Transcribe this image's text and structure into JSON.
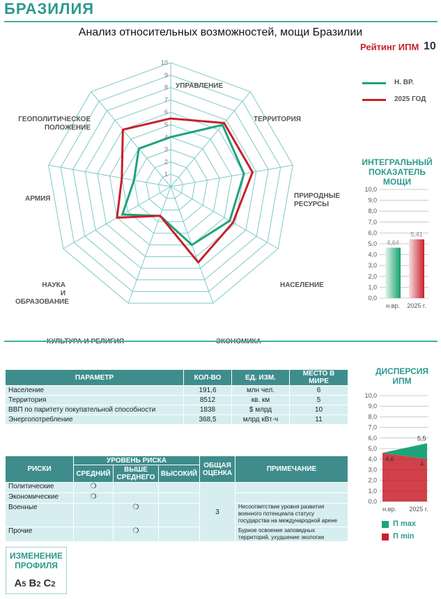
{
  "header": {
    "country": "БРАЗИЛИЯ",
    "title": "Анализ относительных возможностей, мощи Бразилии",
    "rating_label": "Рейтинг ИПМ",
    "rating_value": "10"
  },
  "colors": {
    "teal": "#1fa37a",
    "red": "#c8202a",
    "grid": "#7cc9c6",
    "header_bg": "#3e8d8c",
    "cell_bg": "#d6eef0"
  },
  "chart_data": [
    {
      "type": "radar",
      "axes": [
        "УПРАВЛЕНИЕ",
        "ТЕРРИТОРИЯ",
        "ПРИРОДНЫЕ РЕСУРСЫ",
        "НАСЕЛЕНИЕ",
        "ЭКОНОМИКА",
        "КУЛЬТУРА И РЕЛИГИЯ",
        "НАУКА И ОБРАЗОВАНИЕ",
        "АРМИЯ",
        "ГЕОПОЛИТИЧЕСКОЕ ПОЛОЖЕНИЕ"
      ],
      "axis_labels": [
        [
          "УПРАВЛЕНИЕ"
        ],
        [
          "ТЕРРИТОРИЯ"
        ],
        [
          "ПРИРОДНЫЕ",
          "РЕСУРСЫ"
        ],
        [
          "НАСЕЛЕНИЕ"
        ],
        [
          "ЭКОНОМИКА"
        ],
        [
          "КУЛЬТУРА И РЕЛИГИЯ"
        ],
        [
          "НАУКА",
          "И ОБРАЗОВАНИЕ"
        ],
        [
          "АРМИЯ"
        ],
        [
          "ГЕОПОЛИТИЧЕСКОЕ",
          "ПОЛОЖЕНИЕ"
        ]
      ],
      "scale_ticks": [
        "1",
        "2",
        "3",
        "4",
        "5",
        "6",
        "7",
        "8",
        "9",
        "10"
      ],
      "rlim": [
        0,
        10
      ],
      "series": [
        {
          "name": "Н. ВР.",
          "values": [
            4.0,
            6.5,
            6.0,
            5.5,
            5.0,
            2.5,
            4.5,
            3.0,
            4.0
          ]
        },
        {
          "name": "2025 ГОД",
          "values": [
            5.5,
            6.7,
            6.7,
            5.8,
            6.5,
            2.5,
            5.0,
            4.0,
            6.0
          ]
        }
      ],
      "legend_position": "right"
    },
    {
      "type": "bar",
      "title": "ИНТЕГРАЛЬНЫЙ ПОКАЗАТЕЛЬ МОЩИ",
      "categories": [
        "н.вр.",
        "2025 г."
      ],
      "values": [
        4.64,
        5.41
      ],
      "value_labels": [
        "4,64",
        "5,41"
      ],
      "ylim": [
        0,
        10
      ],
      "yticks": [
        "0,0",
        "1,0",
        "2,0",
        "3,0",
        "4,0",
        "5,0",
        "6,0",
        "7,0",
        "8,0",
        "9,0",
        "10,0"
      ]
    },
    {
      "type": "area",
      "title": "ДИСПЕРСИЯ ИПМ",
      "categories": [
        "н.вр.",
        "2025 г."
      ],
      "series": [
        {
          "name": "П max",
          "values": [
            4.6,
            5.5
          ]
        },
        {
          "name": "П min",
          "values": [
            4.6,
            4.0
          ]
        }
      ],
      "value_labels": [
        "4,6",
        "5,5",
        "4"
      ],
      "ylim": [
        0,
        10
      ],
      "yticks": [
        "0,0",
        "1,0",
        "2,0",
        "3,0",
        "4,0",
        "5,0",
        "6,0",
        "7,0",
        "8,0",
        "9,0",
        "10,0"
      ],
      "legend": [
        "П max",
        "П min"
      ]
    }
  ],
  "params_table": {
    "headers": [
      "ПАРАМЕТР",
      "КОЛ-ВО",
      "ЕД. ИЗМ.",
      "МЕСТО В МИРЕ"
    ],
    "rows": [
      [
        "Население",
        "191,6",
        "млн чел.",
        "6"
      ],
      [
        "Территория",
        "8512",
        "кв. км",
        "5"
      ],
      [
        "ВВП по паритету покупательной способности",
        "1838",
        "$ млрд",
        "10"
      ],
      [
        "Энергопотребление",
        "368,5",
        "млрд кВт·ч",
        "11"
      ]
    ]
  },
  "risks_table": {
    "h_risks": "РИСКИ",
    "h_level": "УРОВЕНЬ РИСКА",
    "h_mid": "СРЕДНИЙ",
    "h_above": "ВЫШЕ СРЕДНЕГО",
    "h_high": "ВЫСОКИЙ",
    "h_total": "ОБЩАЯ ОЦЕНКА",
    "h_note": "ПРИМЕЧАНИЕ",
    "total": "3",
    "mark": "❍",
    "rows": [
      {
        "name": "Политические",
        "level": "mid",
        "note": ""
      },
      {
        "name": "Экономические",
        "level": "mid",
        "note": ""
      },
      {
        "name": "Военные",
        "level": "above",
        "note": "Несоответствие уровня развития военного потенциала статусу государства на международной арене"
      },
      {
        "name": "Прочие",
        "level": "above",
        "note": "Бурное освоение заповедных территорий, ухудшение экологии"
      }
    ]
  },
  "profile": {
    "title": "ИЗМЕНЕНИЕ ПРОФИЛЯ",
    "codes": [
      [
        "A",
        "5"
      ],
      [
        "B",
        "2"
      ],
      [
        "C",
        "2"
      ]
    ]
  }
}
